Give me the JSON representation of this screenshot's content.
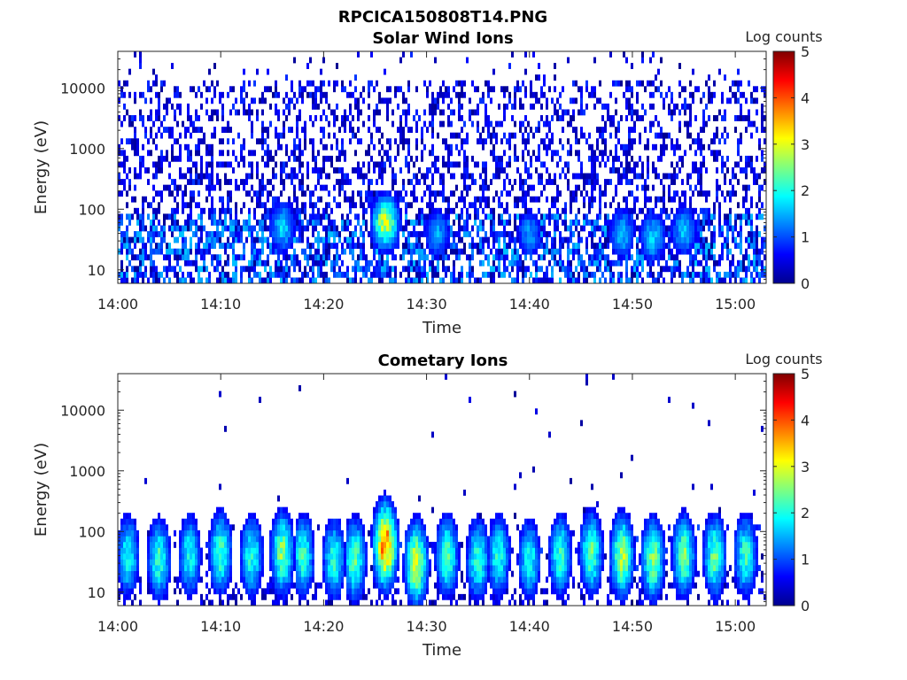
{
  "figure": {
    "title": "RPCICA150808T14.PNG"
  },
  "chart_data": [
    {
      "type": "heatmap",
      "title": "Solar Wind Ions",
      "xlabel": "Time",
      "ylabel": "Energy (eV)",
      "y_scale": "log",
      "ylim_eV": [
        6,
        40000
      ],
      "y_ticks": [
        {
          "value": 10,
          "label": "10"
        },
        {
          "value": 100,
          "label": "100"
        },
        {
          "value": 1000,
          "label": "1000"
        },
        {
          "value": 10000,
          "label": "10000"
        }
      ],
      "x_ticks": [
        "14:00",
        "14:10",
        "14:20",
        "14:30",
        "14:40",
        "14:50",
        "15:00"
      ],
      "x_range": [
        "14:00",
        "15:03"
      ],
      "colorbar": {
        "label": "Log counts",
        "range": [
          0,
          5
        ],
        "ticks": [
          "0",
          "1",
          "2",
          "3",
          "4",
          "5"
        ],
        "colormap": "jet"
      },
      "features": {
        "background": "sparse low-count noise (log counts ~0-1) across all energies",
        "enhancements": [
          {
            "time": "14:16",
            "energy_eV": 50,
            "log_counts": 1.7
          },
          {
            "time": "14:26",
            "energy_eV": 60,
            "log_counts": 2.9
          },
          {
            "time": "14:31",
            "energy_eV": 40,
            "log_counts": 1.5
          },
          {
            "time": "14:40",
            "energy_eV": 40,
            "log_counts": 1.4
          },
          {
            "time": "14:49",
            "energy_eV": 40,
            "log_counts": 1.6
          },
          {
            "time": "14:52",
            "energy_eV": 35,
            "log_counts": 1.7
          },
          {
            "time": "14:55",
            "energy_eV": 45,
            "log_counts": 1.6
          }
        ]
      }
    },
    {
      "type": "heatmap",
      "title": "Cometary Ions",
      "xlabel": "Time",
      "ylabel": "Energy (eV)",
      "y_scale": "log",
      "ylim_eV": [
        6,
        40000
      ],
      "y_ticks": [
        {
          "value": 10,
          "label": "10"
        },
        {
          "value": 100,
          "label": "100"
        },
        {
          "value": 1000,
          "label": "1000"
        },
        {
          "value": 10000,
          "label": "10000"
        }
      ],
      "x_ticks": [
        "14:00",
        "14:10",
        "14:20",
        "14:30",
        "14:40",
        "14:50",
        "15:00"
      ],
      "x_range": [
        "14:00",
        "15:03"
      ],
      "colorbar": {
        "label": "Log counts",
        "range": [
          0,
          5
        ],
        "ticks": [
          "0",
          "1",
          "2",
          "3",
          "4",
          "5"
        ],
        "colormap": "jet"
      },
      "features": {
        "background": "sparse isolated points above 300 eV",
        "bursts": [
          {
            "time": "14:01",
            "energy_eV": 40,
            "log_counts": 2.0
          },
          {
            "time": "14:04",
            "energy_eV": 35,
            "log_counts": 2.2
          },
          {
            "time": "14:07",
            "energy_eV": 40,
            "log_counts": 2.0
          },
          {
            "time": "14:10",
            "energy_eV": 45,
            "log_counts": 2.3
          },
          {
            "time": "14:13",
            "energy_eV": 40,
            "log_counts": 2.1
          },
          {
            "time": "14:16",
            "energy_eV": 45,
            "log_counts": 2.6
          },
          {
            "time": "14:18",
            "energy_eV": 40,
            "log_counts": 2.2
          },
          {
            "time": "14:21",
            "energy_eV": 35,
            "log_counts": 2.1
          },
          {
            "time": "14:23",
            "energy_eV": 35,
            "log_counts": 2.4
          },
          {
            "time": "14:26",
            "energy_eV": 60,
            "log_counts": 3.9
          },
          {
            "time": "14:29",
            "energy_eV": 30,
            "log_counts": 3.0
          },
          {
            "time": "14:32",
            "energy_eV": 40,
            "log_counts": 2.3
          },
          {
            "time": "14:35",
            "energy_eV": 35,
            "log_counts": 2.2
          },
          {
            "time": "14:37",
            "energy_eV": 40,
            "log_counts": 2.1
          },
          {
            "time": "14:40",
            "energy_eV": 35,
            "log_counts": 2.0
          },
          {
            "time": "14:43",
            "energy_eV": 40,
            "log_counts": 2.2
          },
          {
            "time": "14:46",
            "energy_eV": 45,
            "log_counts": 2.4
          },
          {
            "time": "14:49",
            "energy_eV": 40,
            "log_counts": 2.8
          },
          {
            "time": "14:52",
            "energy_eV": 35,
            "log_counts": 2.6
          },
          {
            "time": "14:55",
            "energy_eV": 40,
            "log_counts": 2.5
          },
          {
            "time": "14:58",
            "energy_eV": 40,
            "log_counts": 2.4
          },
          {
            "time": "15:01",
            "energy_eV": 40,
            "log_counts": 2.2
          }
        ]
      }
    }
  ]
}
